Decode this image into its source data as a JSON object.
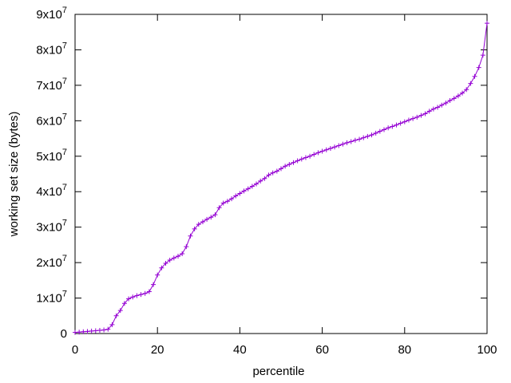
{
  "chart_data": {
    "type": "line",
    "xlabel": "percentile",
    "ylabel": "working set size (bytes)",
    "x": [
      0,
      1,
      2,
      3,
      4,
      5,
      6,
      7,
      8,
      9,
      10,
      11,
      12,
      13,
      14,
      15,
      16,
      17,
      18,
      19,
      20,
      21,
      22,
      23,
      24,
      25,
      26,
      27,
      28,
      29,
      30,
      31,
      32,
      33,
      34,
      35,
      36,
      37,
      38,
      39,
      40,
      41,
      42,
      43,
      44,
      45,
      46,
      47,
      48,
      49,
      50,
      51,
      52,
      53,
      54,
      55,
      56,
      57,
      58,
      59,
      60,
      61,
      62,
      63,
      64,
      65,
      66,
      67,
      68,
      69,
      70,
      71,
      72,
      73,
      74,
      75,
      76,
      77,
      78,
      79,
      80,
      81,
      82,
      83,
      84,
      85,
      86,
      87,
      88,
      89,
      90,
      91,
      92,
      93,
      94,
      95,
      96,
      97,
      98,
      99,
      100
    ],
    "series": [
      {
        "color": "#9400d3",
        "values": [
          300000,
          400000,
          500000,
          600000,
          700000,
          800000,
          900000,
          1000000,
          1200000,
          2500000,
          5000000,
          6500000,
          8500000,
          9800000,
          10300000,
          10700000,
          11000000,
          11300000,
          11800000,
          13800000,
          16500000,
          18500000,
          19800000,
          20700000,
          21300000,
          21800000,
          22500000,
          24500000,
          27500000,
          29500000,
          30800000,
          31500000,
          32200000,
          32800000,
          33500000,
          35500000,
          36800000,
          37300000,
          38000000,
          38800000,
          39500000,
          40200000,
          40800000,
          41500000,
          42200000,
          43000000,
          43700000,
          44700000,
          45300000,
          45800000,
          46500000,
          47200000,
          47700000,
          48200000,
          48700000,
          49200000,
          49600000,
          50000000,
          50500000,
          51000000,
          51400000,
          51800000,
          52200000,
          52600000,
          53000000,
          53400000,
          53800000,
          54100000,
          54500000,
          54800000,
          55200000,
          55600000,
          56000000,
          56500000,
          57000000,
          57500000,
          58000000,
          58400000,
          58800000,
          59300000,
          59700000,
          60200000,
          60600000,
          61000000,
          61500000,
          62000000,
          62700000,
          63300000,
          63800000,
          64400000,
          65000000,
          65700000,
          66300000,
          67000000,
          67800000,
          68800000,
          70500000,
          72500000,
          75000000,
          78500000,
          87500000
        ]
      }
    ],
    "xlim": [
      0,
      100
    ],
    "xticks": [
      0,
      20,
      40,
      60,
      80,
      100
    ],
    "ylim": [
      0,
      90000000
    ],
    "yticks": [
      0,
      {
        "value": 10000000,
        "label": "1x10",
        "power": "7"
      },
      {
        "value": 20000000,
        "label": "2x10",
        "power": "7"
      },
      {
        "value": 30000000,
        "label": "3x10",
        "power": "7"
      },
      {
        "value": 40000000,
        "label": "4x10",
        "power": "7"
      },
      {
        "value": 50000000,
        "label": "5x10",
        "power": "7"
      },
      {
        "value": 60000000,
        "label": "6x10",
        "power": "7"
      },
      {
        "value": 70000000,
        "label": "7x10",
        "power": "7"
      },
      {
        "value": 80000000,
        "label": "8x10",
        "power": "7"
      },
      {
        "value": 90000000,
        "label": "9x10",
        "power": "7"
      }
    ]
  }
}
